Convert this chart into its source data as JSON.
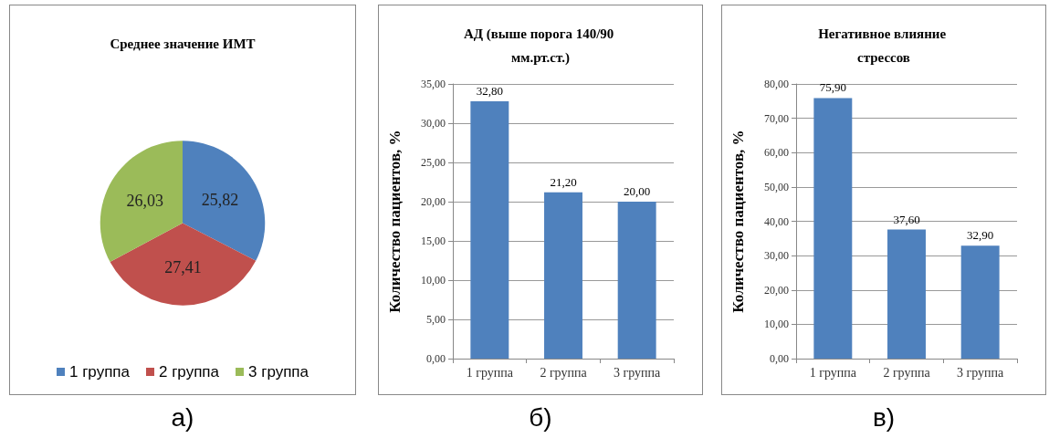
{
  "chart_data": [
    {
      "type": "pie",
      "title": "Среднее значение ИМТ",
      "categories": [
        "1 группа",
        "2 группа",
        "3 группа"
      ],
      "values": [
        25.82,
        27.41,
        26.03
      ],
      "colors": [
        "#4f81bd",
        "#c0504d",
        "#9bbb59"
      ],
      "value_labels": [
        "25,82",
        "27,41",
        "26,03"
      ],
      "legend": "bottom",
      "annotations": [
        "а)"
      ]
    },
    {
      "type": "bar",
      "title": "АД (выше порога 140/90 мм.рт.ст.)",
      "ylabel": "Количество пациентов, %",
      "categories": [
        "1 группа",
        "2 группа",
        "3 группа"
      ],
      "values": [
        32.8,
        21.2,
        20.0
      ],
      "color": "#4f81bd",
      "value_labels": [
        "32,80",
        "21,20",
        "20,00"
      ],
      "ylim": [
        0,
        35
      ],
      "yticks": [
        {
          "value": 0,
          "label": "0,00"
        },
        {
          "value": 5,
          "label": "5,00"
        },
        {
          "value": 10,
          "label": "10,00"
        },
        {
          "value": 15,
          "label": "15,00"
        },
        {
          "value": 20,
          "label": "20,00"
        },
        {
          "value": 25,
          "label": "25,00"
        },
        {
          "value": 30,
          "label": "30,00"
        },
        {
          "value": 35,
          "label": "35,00"
        }
      ],
      "grid": "y",
      "annotations": [
        "б)"
      ]
    },
    {
      "type": "bar",
      "title": "Негативное влияние стрессов",
      "ylabel": "Количество пациентов, %",
      "categories": [
        "1 группа",
        "2 группа",
        "3 группа"
      ],
      "values": [
        75.9,
        37.6,
        32.9
      ],
      "color": "#4f81bd",
      "value_labels": [
        "75,90",
        "37,60",
        "32,90"
      ],
      "ylim": [
        0,
        80
      ],
      "yticks": [
        {
          "value": 0,
          "label": "0,00"
        },
        {
          "value": 10,
          "label": "10,00"
        },
        {
          "value": 20,
          "label": "20,00"
        },
        {
          "value": 30,
          "label": "30,00"
        },
        {
          "value": 40,
          "label": "40,00"
        },
        {
          "value": 50,
          "label": "50,00"
        },
        {
          "value": 60,
          "label": "60,00"
        },
        {
          "value": 70,
          "label": "70,00"
        },
        {
          "value": 80,
          "label": "80,00"
        }
      ],
      "grid": "y",
      "annotations": [
        "в)"
      ]
    }
  ]
}
